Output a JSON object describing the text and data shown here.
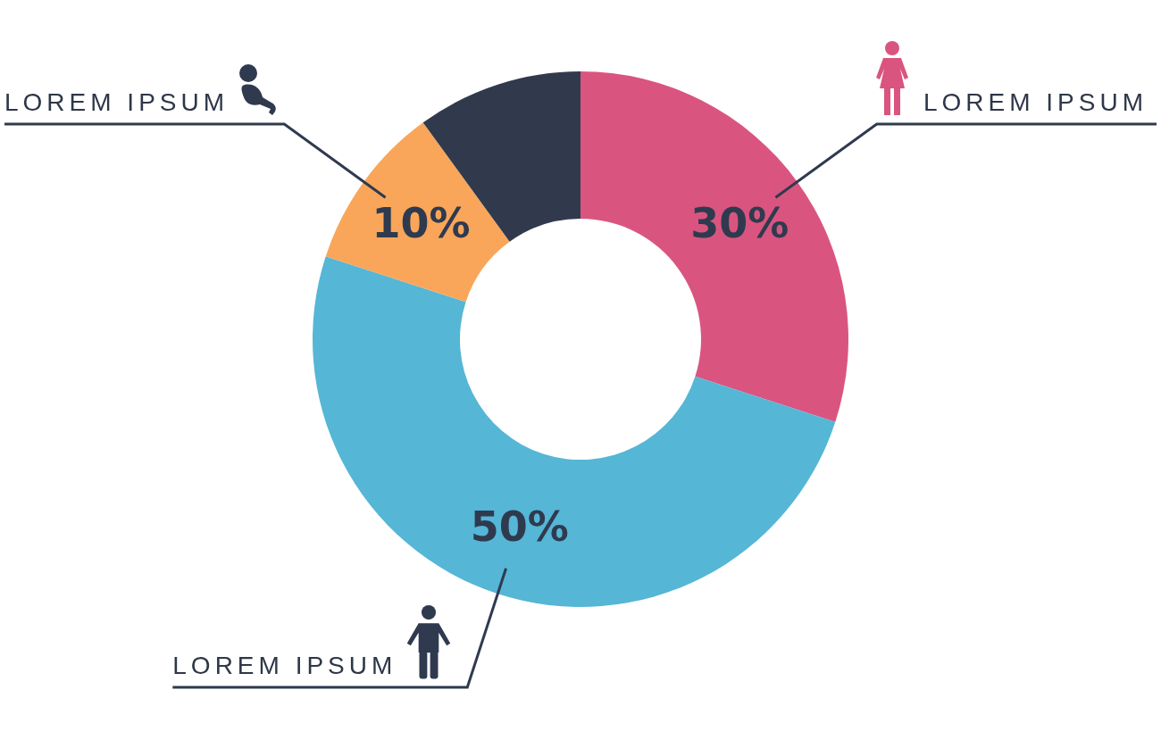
{
  "chart_data": {
    "type": "donut",
    "categories": [
      "LOREM IPSUM",
      "LOREM IPSUM",
      "LOREM IPSUM",
      null
    ],
    "values": [
      30,
      50,
      10,
      10
    ],
    "colors": [
      "#d9557f",
      "#55b6d6",
      "#f9a65a",
      "#313a4d"
    ],
    "value_labels": [
      "30%",
      "50%",
      "10%",
      null
    ],
    "legend": false
  }
}
